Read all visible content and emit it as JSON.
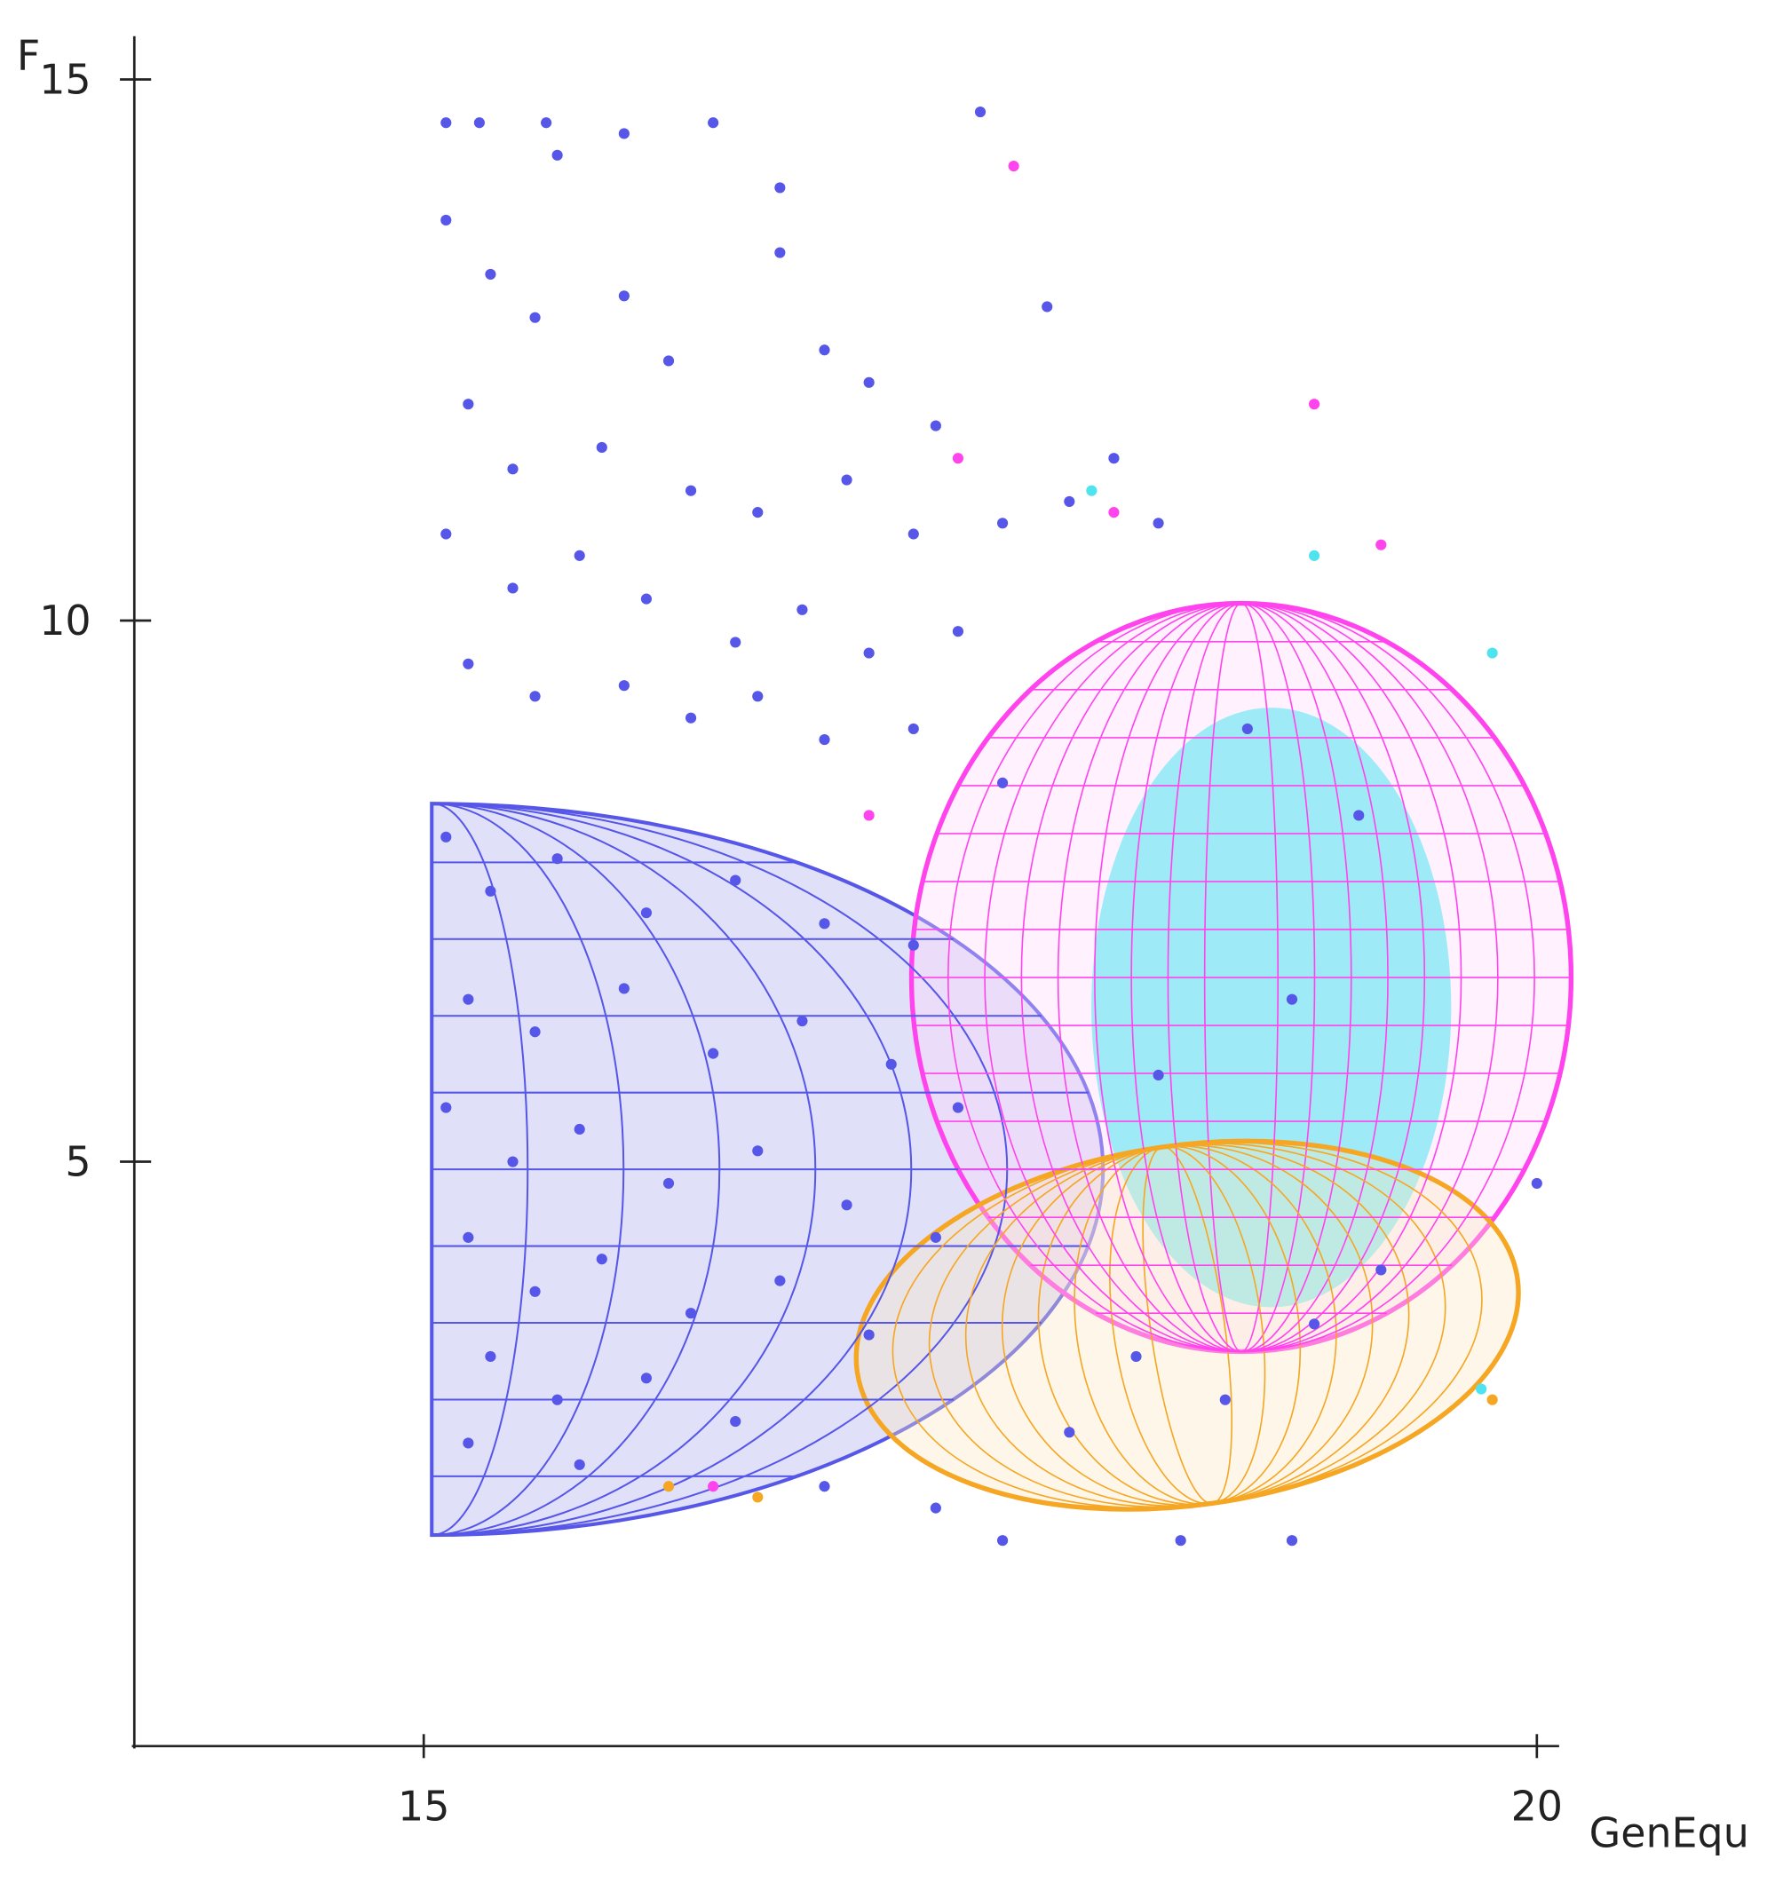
{
  "chart_data": {
    "type": "scatter",
    "x_label": "GenEqu",
    "y_label": "F",
    "xlim": [
      13.7,
      20.1
    ],
    "ylim": [
      -0.4,
      15.4
    ],
    "xticks": [
      15,
      20
    ],
    "yticks": [
      5,
      10,
      15
    ],
    "series": [
      {
        "color": "#5656e8",
        "x": [
          15.1,
          15.25,
          15.55,
          15.9,
          16.3,
          17.5,
          16.6,
          15.6,
          15.1,
          15.3,
          15.5,
          15.9,
          16.1,
          16.6,
          16.8,
          17.0,
          17.3,
          15.2,
          15.4,
          15.8,
          16.2,
          16.5,
          16.9,
          17.2,
          17.6,
          17.9,
          18.3,
          15.1,
          15.4,
          15.7,
          16.0,
          16.4,
          16.7,
          17.0,
          17.4,
          15.2,
          15.5,
          15.9,
          16.2,
          16.5,
          16.8,
          17.2,
          17.8,
          17.6,
          18.1,
          15.1,
          15.3,
          15.6,
          16.0,
          16.4,
          16.8,
          17.2,
          15.2,
          15.5,
          15.9,
          16.3,
          16.7,
          17.1,
          17.4,
          15.1,
          15.4,
          15.7,
          16.1,
          16.5,
          16.9,
          17.3,
          15.2,
          15.5,
          15.8,
          16.2,
          16.6,
          17.0,
          15.3,
          15.6,
          16.0,
          16.4,
          15.2,
          15.7,
          16.8,
          17.3,
          17.6,
          18.4,
          18.9,
          17.9,
          18.2,
          18.6,
          19.0,
          18.3,
          18.9,
          19.2,
          18.7,
          19.3,
          20.0
        ],
        "values": [
          14.6,
          14.6,
          14.6,
          14.5,
          14.6,
          14.7,
          14.0,
          14.3,
          13.7,
          13.2,
          12.8,
          13.0,
          12.4,
          13.4,
          12.5,
          12.2,
          11.8,
          12.0,
          11.4,
          11.6,
          11.2,
          11.0,
          11.3,
          10.8,
          10.9,
          11.1,
          10.9,
          10.8,
          10.3,
          10.6,
          10.2,
          9.8,
          10.1,
          9.7,
          9.9,
          9.6,
          9.3,
          9.4,
          9.1,
          9.3,
          8.9,
          9.0,
          12.9,
          8.5,
          11.5,
          8.0,
          7.5,
          7.8,
          7.3,
          7.6,
          7.2,
          7.0,
          6.5,
          6.2,
          6.6,
          6.0,
          6.3,
          5.9,
          5.5,
          5.5,
          5.0,
          5.3,
          4.8,
          5.1,
          4.6,
          4.3,
          4.3,
          3.8,
          4.1,
          3.6,
          3.9,
          3.4,
          3.2,
          2.8,
          3.0,
          2.6,
          2.4,
          2.2,
          2.0,
          1.8,
          1.5,
          1.5,
          1.5,
          2.5,
          3.2,
          2.8,
          3.5,
          5.8,
          6.5,
          8.2,
          9.0,
          4.0,
          4.8
        ]
      },
      {
        "color": "#ff44ee",
        "x": [
          17.65,
          17.4,
          19.0,
          19.3,
          18.1,
          16.3,
          17.0
        ],
        "values": [
          14.2,
          11.5,
          12.0,
          10.7,
          11.0,
          2.0,
          8.2
        ]
      },
      {
        "color": "#4fe3ef",
        "x": [
          18.0,
          19.0,
          19.8,
          19.75
        ],
        "values": [
          11.2,
          10.6,
          9.7,
          2.9
        ]
      },
      {
        "color": "#f5a623",
        "x": [
          16.1,
          16.5,
          19.8
        ],
        "values": [
          2.0,
          1.9,
          2.8
        ]
      }
    ]
  }
}
